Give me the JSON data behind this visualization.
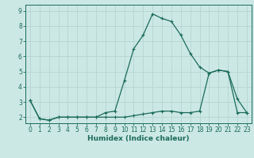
{
  "title": "",
  "xlabel": "Humidex (Indice chaleur)",
  "x_values": [
    0,
    1,
    2,
    3,
    4,
    5,
    6,
    7,
    8,
    9,
    10,
    11,
    12,
    13,
    14,
    15,
    16,
    17,
    18,
    19,
    20,
    21,
    22,
    23
  ],
  "line1_y": [
    3.1,
    1.9,
    1.8,
    2.0,
    2.0,
    2.0,
    2.0,
    2.0,
    2.3,
    2.4,
    4.4,
    6.5,
    7.4,
    8.8,
    8.5,
    8.3,
    7.4,
    6.2,
    5.3,
    4.9,
    5.1,
    5.0,
    3.2,
    2.3
  ],
  "line2_y": [
    3.1,
    1.9,
    1.8,
    2.0,
    2.0,
    2.0,
    2.0,
    2.0,
    2.0,
    2.0,
    2.0,
    2.1,
    2.2,
    2.3,
    2.4,
    2.4,
    2.3,
    2.3,
    2.4,
    4.9,
    5.1,
    5.0,
    2.3,
    2.3
  ],
  "line_color": "#1a6b5a",
  "bg_color": "#cce8e4",
  "grid_color": "#b8d8d4",
  "ylim": [
    1.6,
    9.4
  ],
  "xlim": [
    -0.5,
    23.5
  ],
  "yticks": [
    2,
    3,
    4,
    5,
    6,
    7,
    8,
    9
  ],
  "xticks": [
    0,
    1,
    2,
    3,
    4,
    5,
    6,
    7,
    8,
    9,
    10,
    11,
    12,
    13,
    14,
    15,
    16,
    17,
    18,
    19,
    20,
    21,
    22,
    23
  ],
  "tick_fontsize": 5.5,
  "xlabel_fontsize": 6.5
}
